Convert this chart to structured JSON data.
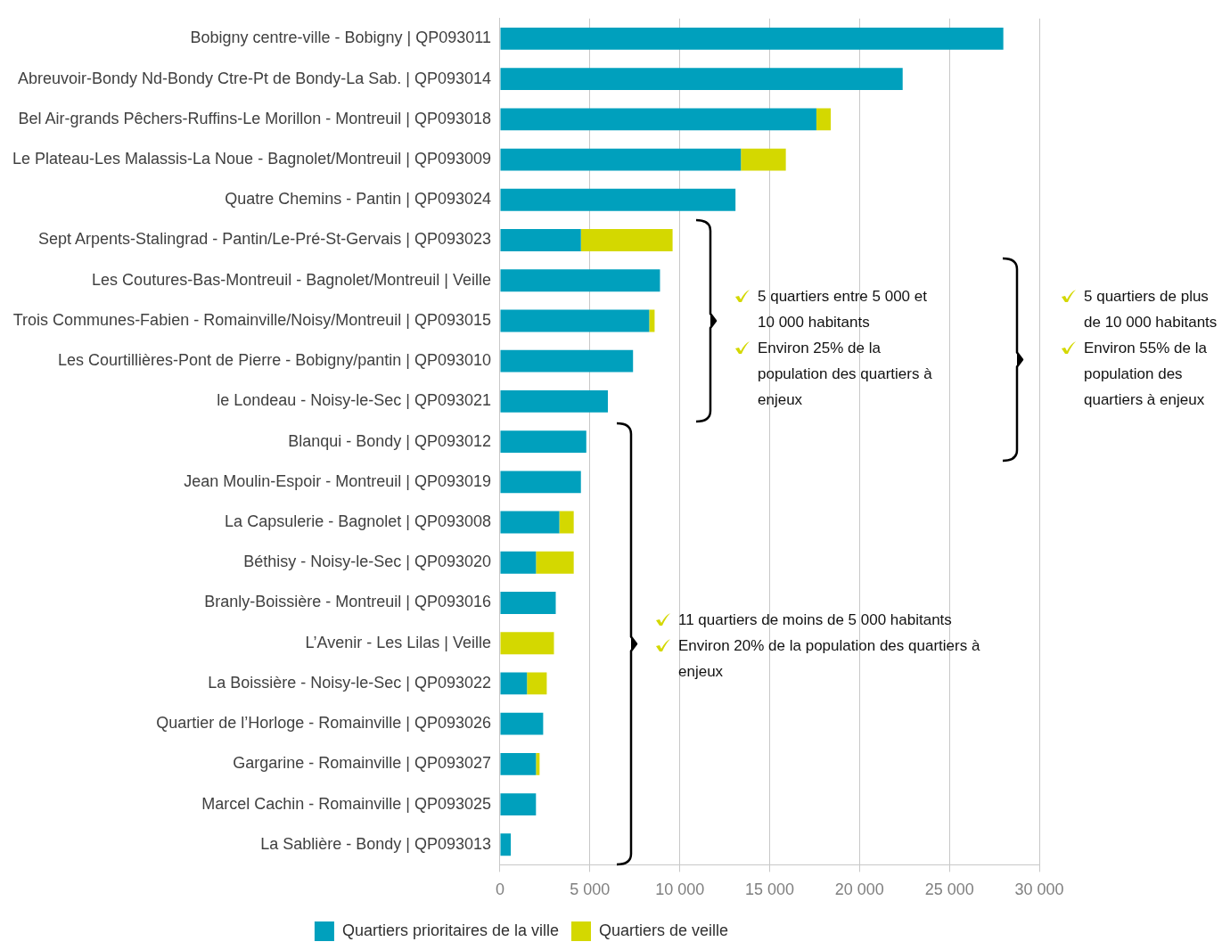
{
  "chart_data": {
    "type": "bar",
    "orientation": "horizontal",
    "stacked": true,
    "categories": [
      "Bobigny centre-ville - Bobigny | QP093011",
      "Abreuvoir-Bondy Nd-Bondy Ctre-Pt de Bondy-La Sab. | QP093014",
      "Bel Air-grands Pêchers-Ruffins-Le Morillon - Montreuil | QP093018",
      "Le Plateau-Les Malassis-La Noue - Bagnolet/Montreuil | QP093009",
      "Quatre Chemins - Pantin | QP093024",
      "Sept Arpents-Stalingrad - Pantin/Le-Pré-St-Gervais | QP093023",
      "Les Coutures-Bas-Montreuil - Bagnolet/Montreuil | Veille",
      "Trois Communes-Fabien - Romainville/Noisy/Montreuil | QP093015",
      "Les Courtillières-Pont de Pierre - Bobigny/pantin | QP093010",
      "le Londeau - Noisy-le-Sec | QP093021",
      "Blanqui - Bondy | QP093012",
      "Jean Moulin-Espoir - Montreuil | QP093019",
      "La Capsulerie - Bagnolet | QP093008",
      "Béthisy - Noisy-le-Sec | QP093020",
      "Branly-Boissière - Montreuil | QP093016",
      "L’Avenir - Les Lilas | Veille",
      "La Boissière - Noisy-le-Sec | QP093022",
      "Quartier de l’Horloge - Romainville | QP093026",
      "Gargarine - Romainville | QP093027",
      "Marcel Cachin - Romainville | QP093025",
      "La Sablière - Bondy | QP093013"
    ],
    "series": [
      {
        "name": "Quartiers prioritaires de la ville",
        "color": "#00a0bd",
        "values": [
          28000,
          22400,
          17600,
          13400,
          13100,
          4500,
          8900,
          8300,
          7400,
          6000,
          4800,
          4500,
          3300,
          2000,
          3100,
          0,
          1500,
          2400,
          2000,
          2000,
          600
        ]
      },
      {
        "name": "Quartiers de veille",
        "color": "#d4d800",
        "values": [
          0,
          0,
          800,
          2500,
          0,
          5100,
          0,
          300,
          0,
          0,
          0,
          0,
          800,
          2100,
          0,
          3000,
          1100,
          0,
          200,
          0,
          0
        ]
      }
    ],
    "xlim": [
      0,
      30000
    ],
    "xticks": [
      0,
      {
        "value": 5000,
        "label": "5 000"
      },
      {
        "value": 10000,
        "label": "10 000"
      },
      {
        "value": 15000,
        "label": "15 000"
      },
      {
        "value": 20000,
        "label": "20 000"
      },
      {
        "value": 25000,
        "label": "25 000"
      },
      {
        "value": 30000,
        "label": "30 000"
      }
    ],
    "grid": "x",
    "legend": "bottom",
    "annotations": [
      "5 quartiers entre 5 000 et 10 000 habitants",
      "Environ 25% de la population des quartiers à enjeux",
      "5 quartiers de plus de 10 000 habitants",
      "Environ 55% de la population des quartiers à enjeux",
      "11 quartiers de moins de 5 000 habitants",
      "Environ 20% de la population des quartiers à enjeux"
    ]
  }
}
